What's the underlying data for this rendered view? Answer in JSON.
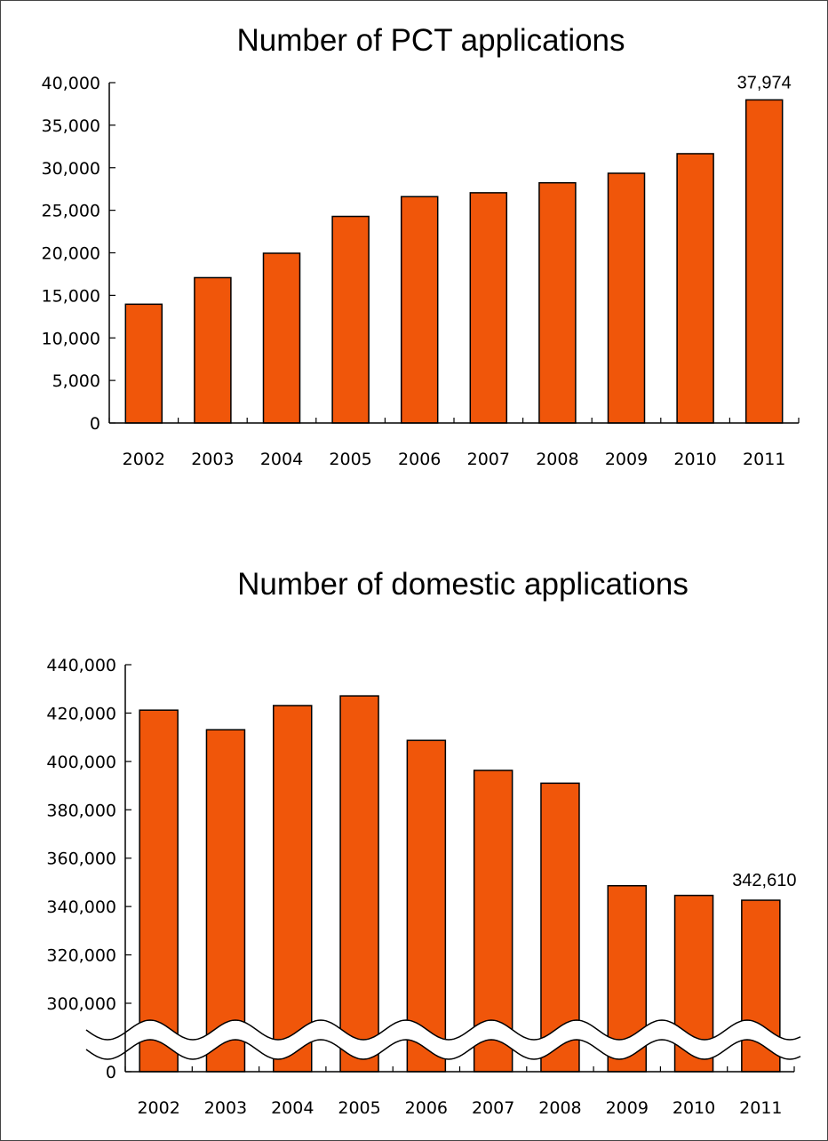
{
  "chart_data": [
    {
      "type": "bar",
      "title": "Number of PCT applications",
      "categories": [
        "2002",
        "2003",
        "2004",
        "2005",
        "2006",
        "2007",
        "2008",
        "2009",
        "2010",
        "2011"
      ],
      "values": [
        13960,
        17080,
        19950,
        24280,
        26600,
        27060,
        28230,
        29350,
        31650,
        37974
      ],
      "ylim": [
        0,
        40000
      ],
      "yticks": [
        "0",
        "5,000",
        "10,000",
        "15,000",
        "20,000",
        "25,000",
        "30,000",
        "35,000",
        "40,000"
      ],
      "annotations": [
        {
          "category": "2011",
          "text": "37,974"
        }
      ],
      "bar_color": "#f0560a",
      "grid": false
    },
    {
      "type": "bar",
      "title": "Number of domestic applications",
      "categories": [
        "2002",
        "2003",
        "2004",
        "2005",
        "2006",
        "2007",
        "2008",
        "2009",
        "2010",
        "2011"
      ],
      "values": [
        421200,
        413100,
        423100,
        427100,
        408700,
        396300,
        391000,
        348600,
        344600,
        342610
      ],
      "ylim": [
        0,
        440000
      ],
      "broken_axis": [
        0,
        300000
      ],
      "yticks": [
        "0",
        "300,000",
        "320,000",
        "340,000",
        "360,000",
        "380,000",
        "400,000",
        "420,000",
        "440,000"
      ],
      "annotations": [
        {
          "category": "2011",
          "text": "342,610"
        }
      ],
      "bar_color": "#f0560a",
      "grid": false
    }
  ]
}
